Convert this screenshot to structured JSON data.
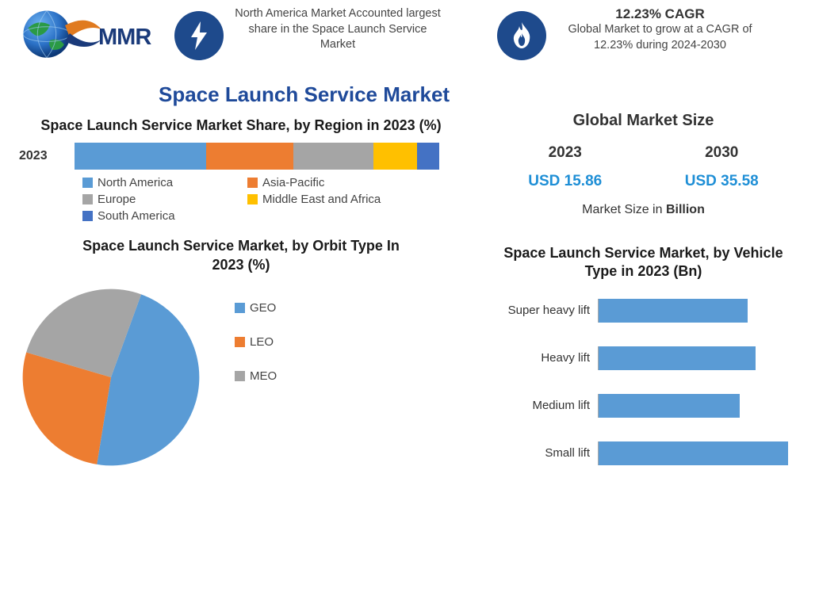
{
  "brand": {
    "name": "MMR",
    "brand_color": "#1a3a7a"
  },
  "header": {
    "stat1": {
      "icon": "bolt-icon",
      "icon_bg": "#1e4a8c",
      "text": "North America Market Accounted largest share in the Space Launch Service Market"
    },
    "stat2": {
      "icon": "flame-icon",
      "icon_bg": "#1e4a8c",
      "title": "12.23% CAGR",
      "text": "Global Market to grow at a CAGR of 12.23% during 2024-2030"
    }
  },
  "main_title": "Space Launch Service Market",
  "region_chart": {
    "type": "stacked-bar",
    "title": "Space Launch Service Market Share, by Region in 2023 (%)",
    "row_label": "2023",
    "segments": [
      {
        "label": "North America",
        "value": 36,
        "color": "#5a9bd5"
      },
      {
        "label": "Asia-Pacific",
        "value": 24,
        "color": "#ed7d31"
      },
      {
        "label": "Europe",
        "value": 22,
        "color": "#a5a5a5"
      },
      {
        "label": "Middle East and Africa",
        "value": 12,
        "color": "#ffc000"
      },
      {
        "label": "South America",
        "value": 6,
        "color": "#4472c4"
      }
    ],
    "title_fontsize": 18,
    "background": "#ffffff"
  },
  "global_size": {
    "title": "Global Market Size",
    "cols": [
      {
        "year": "2023",
        "value": "USD 15.86"
      },
      {
        "year": "2030",
        "value": "USD 35.58"
      }
    ],
    "value_color": "#1f8fd6",
    "unit_prefix": "Market Size in ",
    "unit_bold": "Billion"
  },
  "orbit_chart": {
    "type": "pie",
    "title": "Space Launch Service Market, by Orbit Type In 2023 (%)",
    "slices": [
      {
        "label": "GEO",
        "value": 47,
        "color": "#5a9bd5"
      },
      {
        "label": "LEO",
        "value": 27,
        "color": "#ed7d31"
      },
      {
        "label": "MEO",
        "value": 26,
        "color": "#a5a5a5"
      }
    ],
    "start_angle_deg": 20,
    "title_fontsize": 18
  },
  "vehicle_chart": {
    "type": "bar",
    "title": "Space Launch Service Market, by Vehicle Type in 2023 (Bn)",
    "bars": [
      {
        "label": "Super heavy lift",
        "value": 3.7
      },
      {
        "label": "Heavy lift",
        "value": 3.9
      },
      {
        "label": "Medium lift",
        "value": 3.5
      },
      {
        "label": "Small lift",
        "value": 4.7
      }
    ],
    "xmax": 5.0,
    "bar_color": "#5a9bd5",
    "title_fontsize": 18
  },
  "colors": {
    "text": "#333333",
    "title_blue": "#1f4a9a"
  }
}
